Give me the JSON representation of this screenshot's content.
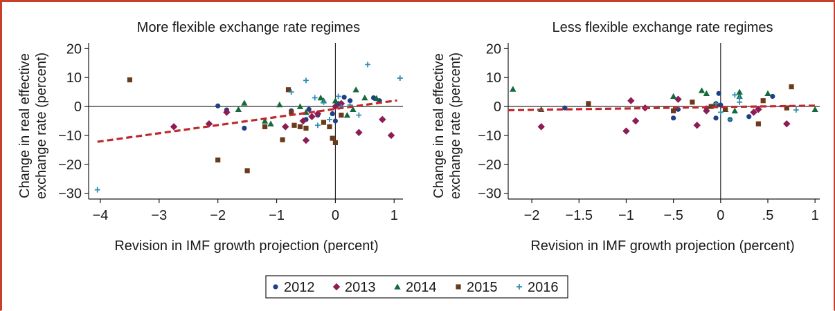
{
  "colors": {
    "frame": "#c9402a",
    "fit_line": "#c0282d",
    "s2012": "#1f3f86",
    "s2013": "#8c1c53",
    "s2014": "#146a3c",
    "s2015": "#6b3a1a",
    "s2016": "#2f8fb3"
  },
  "chart_data": [
    {
      "type": "scatter",
      "title": "More flexible exchange rate regimes",
      "xlabel": "Revision in IMF growth projection (percent)",
      "ylabel": [
        "Change in real effective",
        "exchange rate (percent)"
      ],
      "xlim": [
        -4.2,
        1.15
      ],
      "ylim": [
        -32,
        22
      ],
      "xticks": [
        -4,
        -3,
        -2,
        -1,
        0,
        1
      ],
      "xtick_labels": [
        "−4",
        "−3",
        "−2",
        "−1",
        "0",
        "1"
      ],
      "yticks": [
        20,
        10,
        0,
        -10,
        -20,
        -30
      ],
      "ytick_labels": [
        "20",
        "10",
        "0",
        "−10",
        "−20",
        "−30"
      ],
      "fit_line": {
        "x": [
          -4.05,
          1.05
        ],
        "y": [
          -12.2,
          2.1
        ],
        "style": "dashed"
      },
      "series": [
        {
          "name": "2012",
          "marker": "circle",
          "points": [
            [
              -2.0,
              0.2
            ],
            [
              -1.85,
              -1.2
            ],
            [
              -1.55,
              -7.5
            ],
            [
              -0.5,
              -4.5
            ],
            [
              -0.45,
              -1.0
            ],
            [
              -0.3,
              -3.0
            ],
            [
              -0.05,
              -2.5
            ],
            [
              0.05,
              1.0
            ],
            [
              0.15,
              3.2
            ],
            [
              0.25,
              2.0
            ],
            [
              0.65,
              3.0
            ],
            [
              0.75,
              2.0
            ],
            [
              -0.75,
              -1.5
            ],
            [
              0.0,
              -5.0
            ]
          ]
        },
        {
          "name": "2013",
          "marker": "diamond",
          "points": [
            [
              -2.75,
              -7.0
            ],
            [
              -2.15,
              -6.0
            ],
            [
              -1.85,
              -2.0
            ],
            [
              -0.85,
              -7.0
            ],
            [
              -0.55,
              -5.0
            ],
            [
              -0.5,
              -11.7
            ],
            [
              -0.4,
              -3.5
            ],
            [
              -0.3,
              -2.5
            ],
            [
              0.0,
              0.0
            ],
            [
              0.4,
              -9.0
            ],
            [
              0.8,
              -4.5
            ],
            [
              0.95,
              -10.0
            ],
            [
              0.1,
              1.0
            ]
          ]
        },
        {
          "name": "2014",
          "marker": "triangle",
          "points": [
            [
              -1.65,
              -1.0
            ],
            [
              -1.55,
              1.2
            ],
            [
              -1.2,
              -5.0
            ],
            [
              -0.95,
              0.6
            ],
            [
              -0.6,
              0.0
            ],
            [
              -0.5,
              -2.0
            ],
            [
              -0.25,
              3.0
            ],
            [
              -0.2,
              2.0
            ],
            [
              0.0,
              2.0
            ],
            [
              0.3,
              -1.0
            ],
            [
              0.35,
              5.8
            ],
            [
              0.5,
              3.0
            ],
            [
              0.7,
              2.8
            ],
            [
              0.2,
              -3.0
            ],
            [
              -1.1,
              -6.0
            ]
          ]
        },
        {
          "name": "2015",
          "marker": "square",
          "points": [
            [
              -3.5,
              9.2
            ],
            [
              -2.0,
              -18.5
            ],
            [
              -1.5,
              -22.2
            ],
            [
              -1.2,
              -7.0
            ],
            [
              -0.9,
              -11.5
            ],
            [
              -0.8,
              5.8
            ],
            [
              -0.7,
              -6.5
            ],
            [
              -0.6,
              -7.0
            ],
            [
              -0.5,
              -7.5
            ],
            [
              -0.2,
              -5.5
            ],
            [
              -0.1,
              -7.0
            ],
            [
              0.0,
              -12.5
            ],
            [
              -0.05,
              -11.0
            ],
            [
              0.1,
              -3.0
            ],
            [
              -0.75,
              -2.0
            ]
          ]
        },
        {
          "name": "2016",
          "marker": "plus",
          "points": [
            [
              -4.05,
              -28.8
            ],
            [
              -0.75,
              5.0
            ],
            [
              -0.5,
              9.0
            ],
            [
              -0.35,
              3.0
            ],
            [
              -0.3,
              -6.5
            ],
            [
              -0.1,
              -4.5
            ],
            [
              0.05,
              3.5
            ],
            [
              0.25,
              0.5
            ],
            [
              0.4,
              -3.0
            ],
            [
              0.55,
              14.5
            ],
            [
              1.1,
              9.8
            ],
            [
              0.1,
              0.0
            ],
            [
              -0.2,
              1.5
            ]
          ]
        }
      ]
    },
    {
      "type": "scatter",
      "title": "Less flexible exchange rate regimes",
      "xlabel": "Revision in IMF growth projection (percent)",
      "ylabel": [
        "Change in real effective",
        "exchange rate (percent)"
      ],
      "xlim": [
        -2.25,
        1.05
      ],
      "ylim": [
        -32,
        22
      ],
      "xticks": [
        -2,
        -1.5,
        -1,
        -0.5,
        0,
        0.5,
        1
      ],
      "xtick_labels": [
        "−2",
        "−1.5",
        "−1",
        "−.5",
        "0",
        ".5",
        "1"
      ],
      "yticks": [
        20,
        10,
        0,
        -10,
        -20,
        -30
      ],
      "ytick_labels": [
        "20",
        "10",
        "0",
        "−10",
        "−20",
        "−30"
      ],
      "fit_line": {
        "x": [
          -2.25,
          1.0
        ],
        "y": [
          -1.3,
          0.3
        ],
        "style": "dashed"
      },
      "series": [
        {
          "name": "2012",
          "marker": "circle",
          "points": [
            [
              -1.65,
              -0.5
            ],
            [
              -0.45,
              -1.0
            ],
            [
              -0.05,
              -4.0
            ],
            [
              -0.05,
              1.0
            ],
            [
              0.0,
              0.5
            ],
            [
              -0.02,
              4.5
            ],
            [
              0.1,
              -4.5
            ],
            [
              0.3,
              -3.5
            ],
            [
              0.55,
              3.5
            ],
            [
              -0.15,
              -0.5
            ],
            [
              -0.5,
              -4.0
            ]
          ]
        },
        {
          "name": "2013",
          "marker": "diamond",
          "points": [
            [
              -1.9,
              -7.0
            ],
            [
              -1.0,
              -8.5
            ],
            [
              -0.95,
              2.0
            ],
            [
              -0.9,
              -5.0
            ],
            [
              -0.8,
              -0.5
            ],
            [
              -0.45,
              2.5
            ],
            [
              -0.25,
              -6.5
            ],
            [
              -0.15,
              -1.5
            ],
            [
              0.35,
              -2.0
            ],
            [
              0.4,
              -1.0
            ],
            [
              0.7,
              -6.0
            ]
          ]
        },
        {
          "name": "2014",
          "marker": "triangle",
          "points": [
            [
              -2.2,
              6.0
            ],
            [
              -1.9,
              -1.0
            ],
            [
              -0.5,
              3.5
            ],
            [
              -0.2,
              5.5
            ],
            [
              -0.15,
              4.5
            ],
            [
              0.05,
              -1.0
            ],
            [
              0.15,
              -1.5
            ],
            [
              0.2,
              5.0
            ],
            [
              0.5,
              4.5
            ],
            [
              1.0,
              -1.0
            ],
            [
              0.2,
              3.5
            ]
          ]
        },
        {
          "name": "2015",
          "marker": "square",
          "points": [
            [
              -1.4,
              1.0
            ],
            [
              -0.5,
              -1.5
            ],
            [
              -0.3,
              1.5
            ],
            [
              -0.05,
              0.5
            ],
            [
              0.05,
              -1.0
            ],
            [
              0.4,
              -6.0
            ],
            [
              0.45,
              2.0
            ],
            [
              0.75,
              6.8
            ],
            [
              0.7,
              -0.5
            ],
            [
              -0.1,
              0.0
            ]
          ]
        },
        {
          "name": "2016",
          "marker": "plus",
          "points": [
            [
              0.15,
              4.0
            ],
            [
              0.2,
              1.5
            ],
            [
              0.2,
              3.0
            ],
            [
              0.1,
              -4.5
            ],
            [
              0.0,
              -2.0
            ],
            [
              0.8,
              -1.2
            ],
            [
              -0.05,
              1.0
            ]
          ]
        }
      ]
    }
  ],
  "legend": {
    "items": [
      {
        "label": "2012",
        "marker": "circle",
        "color": "#1f3f86"
      },
      {
        "label": "2013",
        "marker": "diamond",
        "color": "#8c1c53"
      },
      {
        "label": "2014",
        "marker": "triangle",
        "color": "#146a3c"
      },
      {
        "label": "2015",
        "marker": "square",
        "color": "#6b3a1a"
      },
      {
        "label": "2016",
        "marker": "plus",
        "color": "#2f8fb3"
      }
    ]
  }
}
